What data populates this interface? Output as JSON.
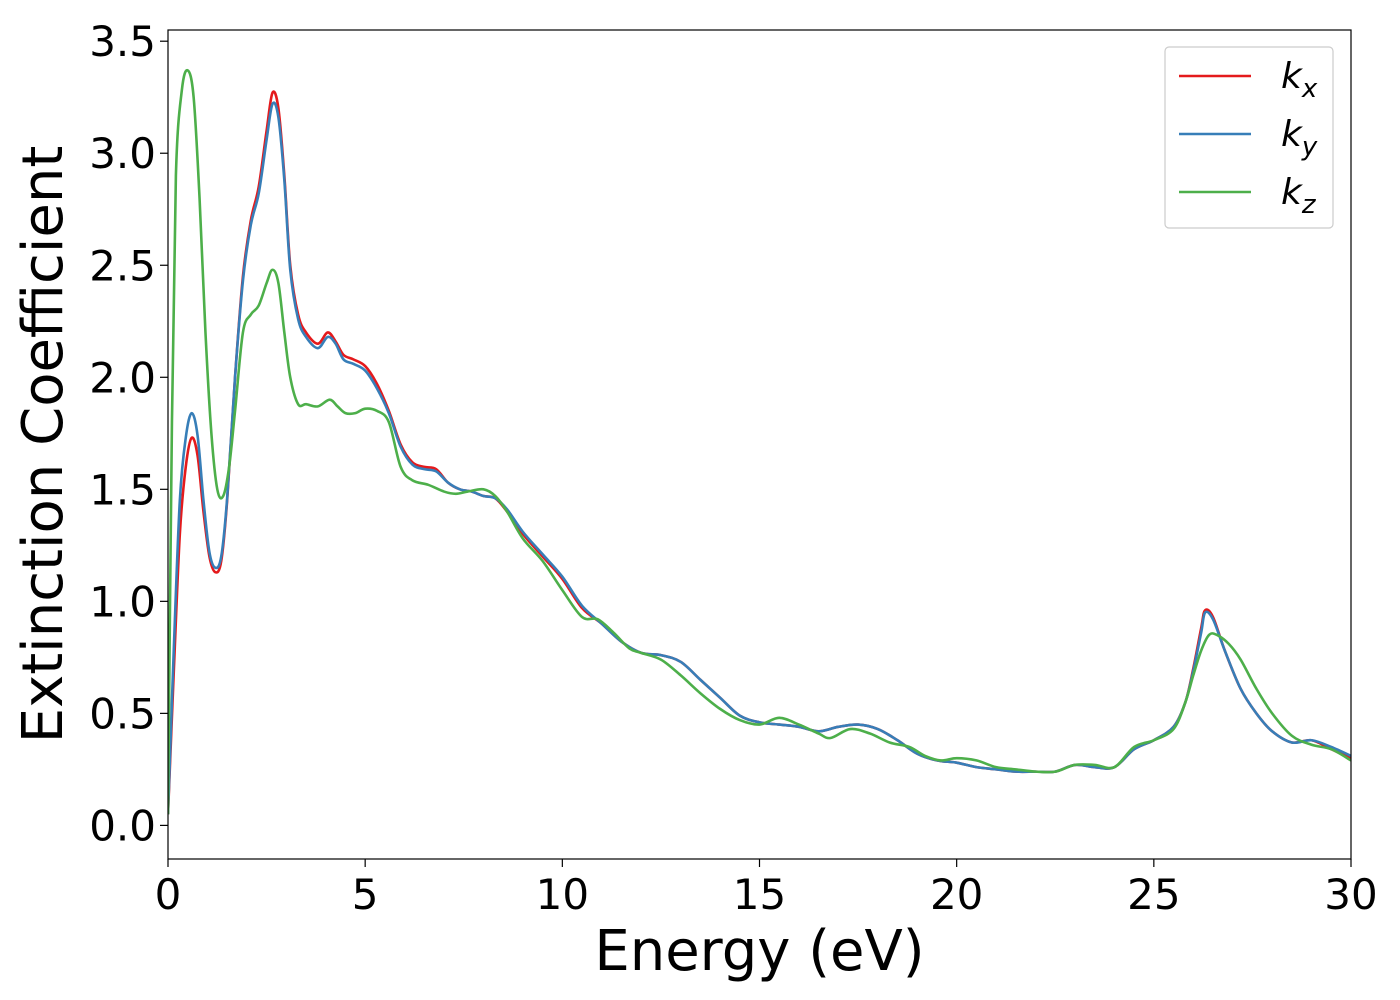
{
  "chart_data": {
    "type": "line",
    "xlabel": "Energy (eV)",
    "ylabel": "Extinction Coefficient",
    "xlim": [
      0,
      30
    ],
    "ylim": [
      -0.15,
      3.55
    ],
    "xticks": [
      0,
      5,
      10,
      15,
      20,
      25,
      30
    ],
    "xtick_labels": [
      "0",
      "5",
      "10",
      "15",
      "20",
      "25",
      "30"
    ],
    "yticks": [
      0.0,
      0.5,
      1.0,
      1.5,
      2.0,
      2.5,
      3.0,
      3.5
    ],
    "ytick_labels": [
      "0.0",
      "0.5",
      "1.0",
      "1.5",
      "2.0",
      "2.5",
      "3.0",
      "3.5"
    ],
    "grid": false,
    "legend": {
      "position": "top-right",
      "entries": [
        {
          "base": "k",
          "sub": "x"
        },
        {
          "base": "k",
          "sub": "y"
        },
        {
          "base": "k",
          "sub": "z"
        }
      ]
    },
    "series": [
      {
        "color": "#e41a1c",
        "x": [
          0,
          0.15,
          0.3,
          0.45,
          0.6,
          0.75,
          0.9,
          1.05,
          1.2,
          1.35,
          1.5,
          1.7,
          1.9,
          2.1,
          2.3,
          2.5,
          2.65,
          2.8,
          2.95,
          3.1,
          3.3,
          3.5,
          3.8,
          4.05,
          4.25,
          4.45,
          4.7,
          5.0,
          5.3,
          5.6,
          5.9,
          6.2,
          6.5,
          6.8,
          7.1,
          7.4,
          7.7,
          8.0,
          8.3,
          8.6,
          9.0,
          9.5,
          10.0,
          10.5,
          11.0,
          11.5,
          12.0,
          12.5,
          13.0,
          13.5,
          14.0,
          14.5,
          15.0,
          15.5,
          16.0,
          16.5,
          17.0,
          17.5,
          18.0,
          18.5,
          19.0,
          19.5,
          20.0,
          20.5,
          21.0,
          21.5,
          22.0,
          22.5,
          23.0,
          23.5,
          24.0,
          24.5,
          25.0,
          25.5,
          25.8,
          26.0,
          26.2,
          26.3,
          26.5,
          26.8,
          27.2,
          27.6,
          28.0,
          28.5,
          29.0,
          29.5,
          30.0
        ],
        "values": [
          0.05,
          0.7,
          1.3,
          1.6,
          1.73,
          1.65,
          1.4,
          1.2,
          1.13,
          1.18,
          1.45,
          2.0,
          2.45,
          2.7,
          2.85,
          3.1,
          3.27,
          3.2,
          2.9,
          2.5,
          2.28,
          2.2,
          2.15,
          2.2,
          2.16,
          2.1,
          2.08,
          2.05,
          1.97,
          1.85,
          1.7,
          1.62,
          1.6,
          1.59,
          1.53,
          1.5,
          1.49,
          1.47,
          1.46,
          1.4,
          1.3,
          1.2,
          1.1,
          0.97,
          0.9,
          0.82,
          0.77,
          0.76,
          0.73,
          0.65,
          0.57,
          0.49,
          0.46,
          0.45,
          0.44,
          0.42,
          0.44,
          0.45,
          0.43,
          0.38,
          0.32,
          0.29,
          0.28,
          0.26,
          0.25,
          0.24,
          0.24,
          0.24,
          0.27,
          0.26,
          0.26,
          0.34,
          0.38,
          0.44,
          0.55,
          0.7,
          0.88,
          0.96,
          0.93,
          0.78,
          0.61,
          0.5,
          0.42,
          0.37,
          0.38,
          0.34,
          0.3
        ]
      },
      {
        "color": "#377eb8",
        "x": [
          0,
          0.15,
          0.3,
          0.45,
          0.6,
          0.75,
          0.9,
          1.05,
          1.2,
          1.35,
          1.5,
          1.7,
          1.9,
          2.1,
          2.3,
          2.5,
          2.65,
          2.8,
          2.95,
          3.1,
          3.3,
          3.5,
          3.8,
          4.05,
          4.25,
          4.45,
          4.7,
          5.0,
          5.3,
          5.6,
          5.9,
          6.2,
          6.5,
          6.8,
          7.1,
          7.4,
          7.7,
          8.0,
          8.3,
          8.6,
          9.0,
          9.5,
          10.0,
          10.5,
          11.0,
          11.5,
          12.0,
          12.5,
          13.0,
          13.5,
          14.0,
          14.5,
          15.0,
          15.5,
          16.0,
          16.5,
          17.0,
          17.5,
          18.0,
          18.5,
          19.0,
          19.5,
          20.0,
          20.5,
          21.0,
          21.5,
          22.0,
          22.5,
          23.0,
          23.5,
          24.0,
          24.5,
          25.0,
          25.5,
          25.8,
          26.0,
          26.2,
          26.3,
          26.5,
          26.8,
          27.2,
          27.6,
          28.0,
          28.5,
          29.0,
          29.5,
          30.0
        ],
        "values": [
          0.05,
          0.8,
          1.45,
          1.73,
          1.84,
          1.74,
          1.45,
          1.22,
          1.15,
          1.2,
          1.46,
          2.0,
          2.43,
          2.68,
          2.82,
          3.06,
          3.22,
          3.16,
          2.88,
          2.48,
          2.26,
          2.18,
          2.13,
          2.18,
          2.15,
          2.08,
          2.06,
          2.03,
          1.95,
          1.84,
          1.69,
          1.61,
          1.59,
          1.58,
          1.53,
          1.5,
          1.49,
          1.47,
          1.46,
          1.41,
          1.31,
          1.21,
          1.11,
          0.98,
          0.9,
          0.82,
          0.77,
          0.76,
          0.73,
          0.65,
          0.57,
          0.49,
          0.46,
          0.45,
          0.44,
          0.42,
          0.44,
          0.45,
          0.43,
          0.38,
          0.32,
          0.29,
          0.28,
          0.26,
          0.25,
          0.24,
          0.24,
          0.24,
          0.27,
          0.26,
          0.26,
          0.34,
          0.38,
          0.44,
          0.55,
          0.69,
          0.86,
          0.95,
          0.92,
          0.78,
          0.61,
          0.5,
          0.42,
          0.37,
          0.38,
          0.35,
          0.31
        ]
      },
      {
        "color": "#4daf4a",
        "x": [
          0,
          0.1,
          0.2,
          0.35,
          0.5,
          0.65,
          0.8,
          0.95,
          1.1,
          1.25,
          1.4,
          1.55,
          1.7,
          1.9,
          2.1,
          2.3,
          2.5,
          2.65,
          2.8,
          2.95,
          3.1,
          3.3,
          3.5,
          3.8,
          4.1,
          4.3,
          4.5,
          4.75,
          5.0,
          5.3,
          5.6,
          5.9,
          6.2,
          6.6,
          7.0,
          7.3,
          7.6,
          8.0,
          8.3,
          8.6,
          9.0,
          9.5,
          10.0,
          10.5,
          10.9,
          11.3,
          11.7,
          12.0,
          12.5,
          13.0,
          13.5,
          14.0,
          14.5,
          15.0,
          15.5,
          16.0,
          16.5,
          16.8,
          17.3,
          17.8,
          18.3,
          18.8,
          19.2,
          19.6,
          20.0,
          20.5,
          21.0,
          21.5,
          22.0,
          22.5,
          23.0,
          23.5,
          24.0,
          24.5,
          25.0,
          25.5,
          25.8,
          26.0,
          26.2,
          26.4,
          26.6,
          26.9,
          27.2,
          27.6,
          28.0,
          28.5,
          29.0,
          29.5,
          30.0
        ],
        "values": [
          0.05,
          1.8,
          2.9,
          3.28,
          3.37,
          3.25,
          2.8,
          2.2,
          1.75,
          1.5,
          1.47,
          1.6,
          1.85,
          2.2,
          2.28,
          2.32,
          2.42,
          2.48,
          2.42,
          2.2,
          2.0,
          1.88,
          1.88,
          1.87,
          1.9,
          1.87,
          1.84,
          1.84,
          1.86,
          1.85,
          1.8,
          1.6,
          1.54,
          1.52,
          1.49,
          1.48,
          1.49,
          1.5,
          1.47,
          1.4,
          1.28,
          1.18,
          1.05,
          0.93,
          0.92,
          0.86,
          0.79,
          0.77,
          0.74,
          0.67,
          0.59,
          0.52,
          0.47,
          0.45,
          0.48,
          0.45,
          0.41,
          0.39,
          0.43,
          0.41,
          0.37,
          0.35,
          0.31,
          0.29,
          0.3,
          0.29,
          0.26,
          0.25,
          0.24,
          0.24,
          0.27,
          0.27,
          0.26,
          0.35,
          0.38,
          0.43,
          0.55,
          0.67,
          0.78,
          0.85,
          0.85,
          0.81,
          0.74,
          0.61,
          0.5,
          0.4,
          0.36,
          0.34,
          0.29
        ]
      }
    ]
  }
}
